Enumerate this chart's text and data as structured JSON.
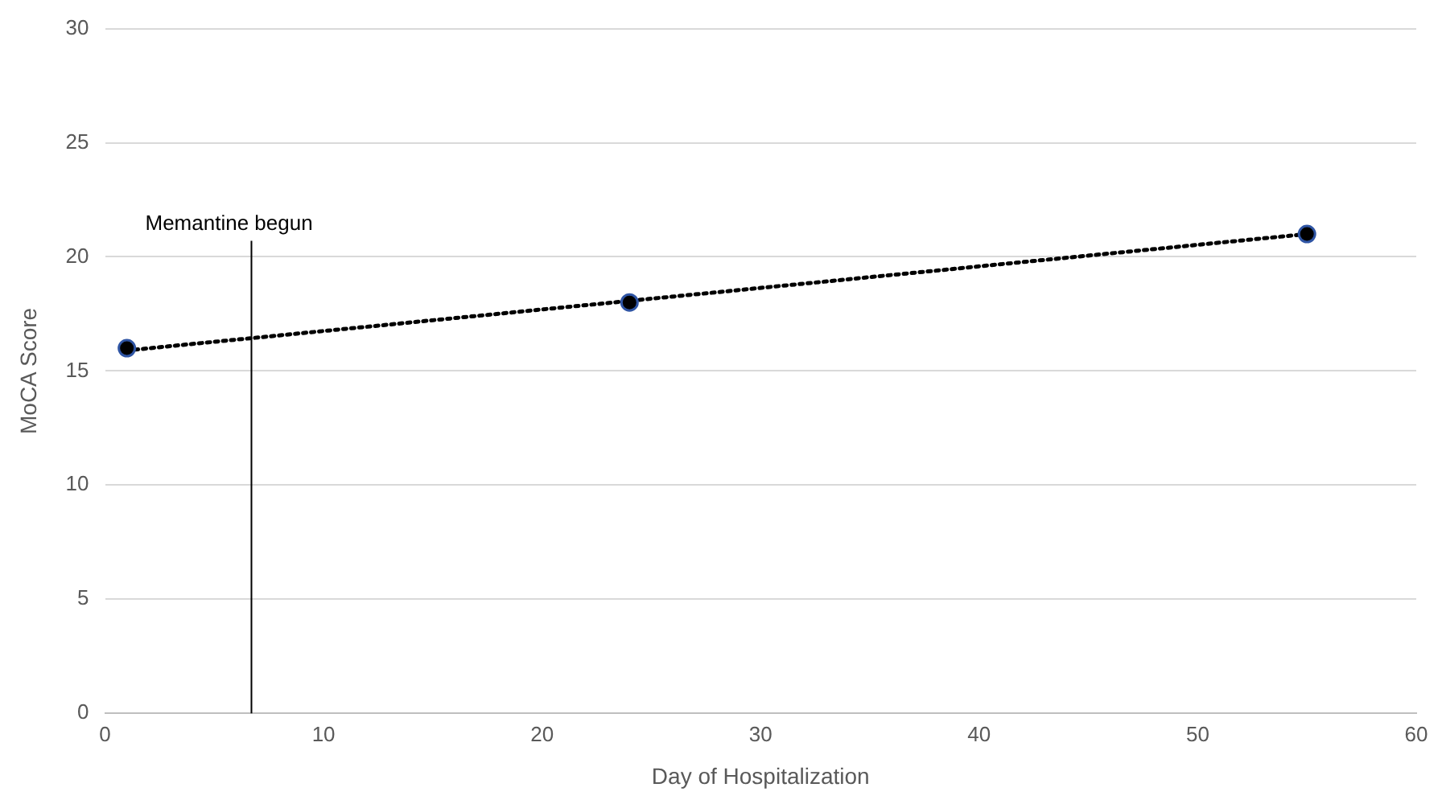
{
  "chart_data": {
    "type": "scatter",
    "xlabel": "Day of Hospitalization",
    "ylabel": "MoCA Score",
    "series": [
      {
        "type": "scatter",
        "x": [
          1,
          24,
          55
        ],
        "values": [
          16,
          18,
          21
        ],
        "color": "#000000",
        "marker": "circle"
      },
      {
        "type": "line",
        "x": [
          1,
          55
        ],
        "values": [
          15.9,
          21.0
        ],
        "color": "#000000",
        "line_style": "dotted",
        "marker": "none"
      }
    ],
    "xlim": [
      0,
      60
    ],
    "xticks": [
      0,
      10,
      20,
      30,
      40,
      50,
      60
    ],
    "ylim": [
      0,
      30
    ],
    "yticks": [
      0,
      5,
      10,
      15,
      20,
      25,
      30
    ],
    "grid": "y",
    "legend": false,
    "ref_lines": [
      {
        "axis": "x",
        "value": 6.7,
        "label": "Memantine begun",
        "color": "#000000"
      }
    ]
  }
}
